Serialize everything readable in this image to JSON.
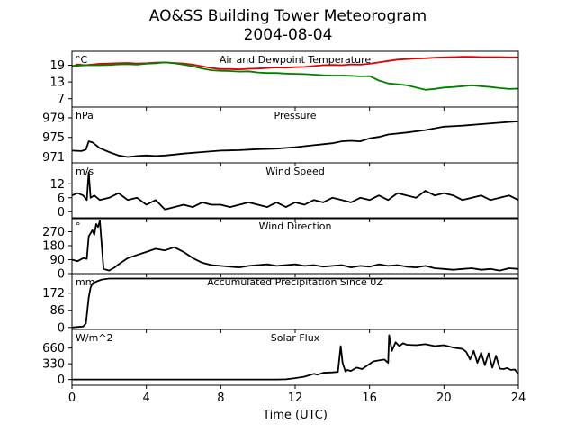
{
  "title": "AO&SS Building Tower Meteorogram",
  "subtitle": "2004-08-04",
  "chart_data": {
    "type": "line",
    "xlabel": "Time (UTC)",
    "xlim": [
      0,
      24
    ],
    "xticks": [
      0,
      4,
      8,
      12,
      16,
      20,
      24
    ],
    "panels": [
      {
        "id": "temperature",
        "title": "Air and Dewpoint Temperature",
        "unit": "°C",
        "ylim": [
          4,
          24
        ],
        "yticks": [
          19,
          13,
          7
        ],
        "series": [
          {
            "color": "#e00000",
            "x": [
              0,
              0.3,
              0.7,
              1.0,
              1.5,
              2,
              2.5,
              3,
              3.5,
              4,
              4.5,
              5,
              5.5,
              6,
              6.5,
              7,
              7.5,
              8,
              8.5,
              9,
              9.5,
              10,
              10.5,
              11,
              11.5,
              12,
              12.5,
              13,
              13.5,
              14,
              14.5,
              15,
              15.5,
              16,
              16.5,
              17,
              17.5,
              18,
              18.5,
              19,
              19.5,
              20,
              20.5,
              21,
              21.5,
              22,
              22.5,
              23,
              23.5,
              24
            ],
            "y": [
              18.5,
              19.3,
              19.0,
              19.2,
              19.5,
              19.6,
              19.7,
              19.8,
              19.6,
              19.7,
              19.9,
              20.0,
              19.8,
              19.6,
              19.2,
              18.6,
              18.0,
              17.6,
              17.6,
              17.5,
              17.7,
              17.8,
              18.0,
              18.2,
              18.1,
              18.3,
              18.4,
              18.7,
              19.0,
              19.1,
              19.0,
              19.3,
              19.2,
              19.5,
              20.0,
              20.5,
              21.0,
              21.2,
              21.4,
              21.5,
              21.7,
              21.8,
              21.9,
              22.0,
              22.0,
              21.9,
              21.9,
              21.9,
              21.8,
              21.8
            ]
          },
          {
            "color": "#008000",
            "x": [
              0,
              0.3,
              0.7,
              1.0,
              1.5,
              2,
              2.5,
              3,
              3.5,
              4,
              4.5,
              5,
              5.5,
              6,
              6.5,
              7,
              7.5,
              8,
              8.5,
              9,
              9.5,
              10,
              10.5,
              11,
              11.5,
              12,
              12.5,
              13,
              13.5,
              14,
              14.5,
              15,
              15.5,
              16,
              16.5,
              17,
              17.5,
              18,
              18.5,
              19,
              19.5,
              20,
              20.5,
              21,
              21.5,
              22,
              22.5,
              23,
              23.5,
              24
            ],
            "y": [
              18.8,
              18.8,
              19.0,
              19.0,
              19.0,
              19.1,
              19.3,
              19.4,
              19.2,
              19.5,
              19.7,
              20.0,
              19.7,
              19.2,
              18.6,
              17.8,
              17.2,
              17.0,
              16.9,
              16.7,
              16.8,
              16.4,
              16.2,
              16.2,
              16.0,
              15.9,
              15.8,
              15.6,
              15.4,
              15.3,
              15.3,
              15.2,
              15.0,
              15.1,
              13.5,
              12.5,
              12.2,
              11.8,
              11.0,
              10.2,
              10.5,
              11.0,
              11.2,
              11.5,
              11.8,
              11.5,
              11.2,
              10.8,
              10.5,
              10.6
            ]
          }
        ]
      },
      {
        "id": "pressure",
        "title": "Pressure",
        "unit": "hPa",
        "ylim": [
          969.8,
          981.2
        ],
        "yticks": [
          979,
          975,
          971
        ],
        "series": [
          {
            "color": "#000000",
            "x": [
              0,
              0.5,
              0.75,
              0.9,
              1.1,
              1.5,
              2,
              2.5,
              3,
              3.5,
              4,
              4.5,
              5,
              5.5,
              6,
              7,
              8,
              9,
              10,
              11,
              12,
              12.5,
              13,
              13.5,
              14,
              14.5,
              15,
              15.5,
              16,
              16.5,
              17,
              18,
              19,
              20,
              21,
              22,
              23,
              24
            ],
            "y": [
              972.3,
              972.2,
              972.5,
              974.2,
              974.0,
              972.8,
              972.0,
              971.3,
              971.0,
              971.2,
              971.3,
              971.2,
              971.3,
              971.5,
              971.7,
              972.0,
              972.3,
              972.4,
              972.6,
              972.7,
              973.0,
              973.2,
              973.4,
              973.6,
              973.8,
              974.2,
              974.3,
              974.2,
              974.8,
              975.1,
              975.6,
              976.0,
              976.5,
              977.2,
              977.4,
              977.7,
              978.0,
              978.3
            ]
          }
        ]
      },
      {
        "id": "wind_speed",
        "title": "Wind Speed",
        "unit": "m/s",
        "ylim": [
          -3,
          21
        ],
        "yticks": [
          12,
          6,
          0
        ],
        "series": [
          {
            "color": "#000000",
            "x": [
              0,
              0.3,
              0.6,
              0.8,
              0.9,
              1.0,
              1.2,
              1.5,
              2,
              2.5,
              3,
              3.5,
              4,
              4.5,
              5,
              5.5,
              6,
              6.5,
              7,
              7.5,
              8,
              8.5,
              9,
              9.5,
              10,
              10.5,
              11,
              11.5,
              12,
              12.5,
              13,
              13.5,
              14,
              14.5,
              15,
              15.5,
              16,
              16.5,
              17,
              17.5,
              18,
              18.5,
              19,
              19.5,
              20,
              20.5,
              21,
              21.5,
              22,
              22.5,
              23,
              23.5,
              24
            ],
            "y": [
              7,
              8,
              7,
              5,
              17,
              6,
              7,
              5,
              6,
              8,
              5,
              6,
              3,
              5,
              1,
              2,
              3,
              2,
              4,
              3,
              3,
              2,
              3,
              4,
              3,
              2,
              4,
              2,
              4,
              3,
              5,
              4,
              6,
              5,
              4,
              6,
              5,
              7,
              5,
              8,
              7,
              6,
              9,
              7,
              8,
              7,
              5,
              6,
              7,
              5,
              6,
              7,
              5
            ]
          }
        ]
      },
      {
        "id": "wind_direction",
        "title": "Wind Direction",
        "unit": "°",
        "ylim": [
          0,
          360
        ],
        "yticks": [
          270,
          180,
          90,
          0
        ],
        "series": [
          {
            "color": "#000000",
            "x": [
              0,
              0.3,
              0.6,
              0.8,
              0.9,
              1.0,
              1.1,
              1.2,
              1.3,
              1.4,
              1.5,
              1.7,
              2.0,
              2.3,
              2.5,
              3,
              3.5,
              4,
              4.5,
              5,
              5.5,
              6,
              6.5,
              7,
              7.5,
              8,
              8.5,
              9,
              9.5,
              10,
              10.5,
              11,
              11.5,
              12,
              12.5,
              13,
              13.5,
              14,
              14.5,
              15,
              15.5,
              16,
              16.5,
              17,
              17.5,
              18,
              18.5,
              19,
              19.5,
              20,
              20.5,
              21,
              21.5,
              22,
              22.5,
              23,
              23.5,
              24
            ],
            "y": [
              90,
              80,
              100,
              95,
              240,
              260,
              280,
              250,
              320,
              300,
              340,
              30,
              20,
              40,
              60,
              100,
              120,
              140,
              160,
              150,
              170,
              140,
              100,
              70,
              55,
              50,
              45,
              40,
              50,
              55,
              60,
              50,
              55,
              60,
              50,
              55,
              45,
              50,
              55,
              40,
              50,
              45,
              60,
              50,
              55,
              45,
              40,
              50,
              35,
              30,
              25,
              30,
              35,
              25,
              30,
              20,
              35,
              30
            ]
          }
        ]
      },
      {
        "id": "precip",
        "title": "Accumulated Precipitation Since 0Z",
        "unit": "mm",
        "ylim": [
          -10,
          270
        ],
        "yticks": [
          172,
          86,
          0
        ],
        "series": [
          {
            "color": "#000000",
            "x": [
              0,
              0.6,
              0.75,
              0.9,
              1.0,
              1.1,
              1.3,
              1.6,
              2.0,
              2.5,
              4,
              8,
              12,
              16,
              20,
              24
            ],
            "y": [
              0,
              5,
              20,
              150,
              200,
              220,
              230,
              240,
              245,
              245,
              245,
              245,
              245,
              245,
              245,
              245
            ]
          }
        ]
      },
      {
        "id": "solar",
        "title": "Solar Flux",
        "unit": "W/m^2",
        "ylim": [
          -120,
          1050
        ],
        "yticks": [
          660,
          330,
          0
        ],
        "series": [
          {
            "color": "#000000",
            "x": [
              0,
              4,
              8,
              10,
              11,
              11.5,
              12,
              12.5,
              13,
              13.2,
              13.5,
              14,
              14.3,
              14.45,
              14.55,
              14.7,
              14.8,
              15,
              15.3,
              15.6,
              15.9,
              16.2,
              16.5,
              16.8,
              17,
              17.05,
              17.2,
              17.4,
              17.6,
              17.8,
              18,
              18.5,
              19,
              19.5,
              20,
              20.5,
              21,
              21.2,
              21.4,
              21.6,
              21.8,
              22,
              22.2,
              22.4,
              22.6,
              22.8,
              23,
              23.2,
              23.4,
              23.6,
              23.8,
              24
            ],
            "y": [
              0,
              0,
              0,
              0,
              0,
              5,
              30,
              60,
              120,
              100,
              140,
              150,
              160,
              700,
              350,
              170,
              200,
              180,
              250,
              220,
              300,
              380,
              400,
              420,
              350,
              930,
              600,
              780,
              700,
              760,
              730,
              720,
              740,
              700,
              720,
              670,
              640,
              580,
              420,
              600,
              350,
              560,
              300,
              550,
              250,
              500,
              230,
              220,
              240,
              200,
              210,
              120
            ]
          }
        ]
      }
    ]
  }
}
